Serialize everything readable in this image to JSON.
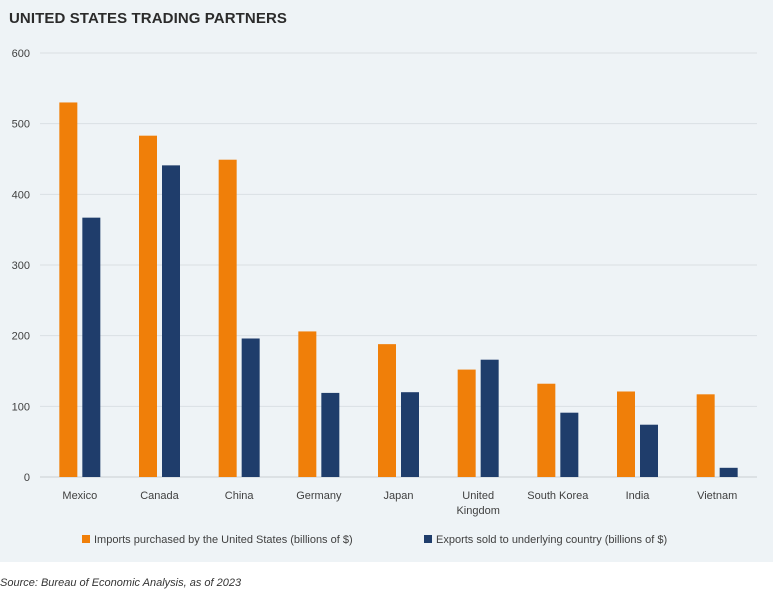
{
  "chart_data": {
    "type": "bar",
    "title": "UNITED STATES TRADING PARTNERS",
    "xlabel": "",
    "ylabel": "",
    "ylim": [
      0,
      600
    ],
    "yticks": [
      0,
      100,
      200,
      300,
      400,
      500,
      600
    ],
    "grid": true,
    "legend_position": "bottom",
    "categories": [
      "Mexico",
      "Canada",
      "China",
      "Germany",
      "Japan",
      "United Kingdom",
      "South Korea",
      "India",
      "Vietnam"
    ],
    "category_lines": [
      [
        "Mexico"
      ],
      [
        "Canada"
      ],
      [
        "China"
      ],
      [
        "Germany"
      ],
      [
        "Japan"
      ],
      [
        "United",
        "Kingdom"
      ],
      [
        "South Korea"
      ],
      [
        "India"
      ],
      [
        "Vietnam"
      ]
    ],
    "series": [
      {
        "name": "Imports purchased by the United States (billions of $)",
        "color": "#f07f09",
        "values": [
          530,
          483,
          449,
          206,
          188,
          152,
          132,
          121,
          117
        ]
      },
      {
        "name": "Exports sold to underlying country (billions of $)",
        "color": "#1f3d6b",
        "values": [
          367,
          441,
          196,
          119,
          120,
          166,
          91,
          74,
          13
        ]
      }
    ]
  },
  "source_note": "Source: Bureau of Economic Analysis, as of 2023"
}
